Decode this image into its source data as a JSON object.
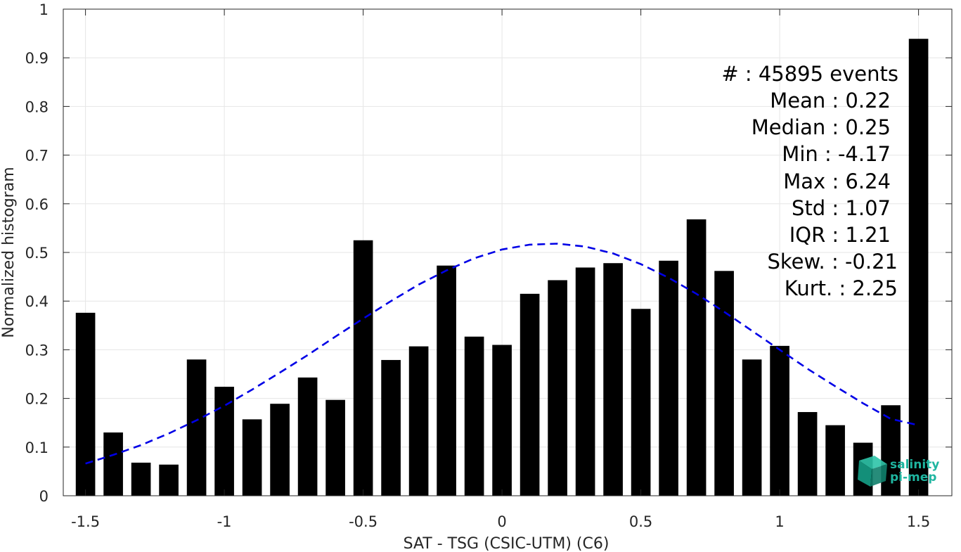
{
  "chart_data": {
    "type": "bar",
    "xlabel": "SAT - TSG (CSIC-UTM) (C6)",
    "ylabel": "Normalized histogram",
    "xlim": [
      -1.58,
      1.62
    ],
    "ylim": [
      0,
      1
    ],
    "x_ticks": [
      -1.5,
      -1,
      -0.5,
      0,
      0.5,
      1,
      1.5
    ],
    "x_tick_labels": [
      "-1.5",
      "-1",
      "-0.5",
      "0",
      "0.5",
      "1",
      "1.5"
    ],
    "y_ticks": [
      0,
      0.1,
      0.2,
      0.3,
      0.4,
      0.5,
      0.6,
      0.7,
      0.8,
      0.9,
      1
    ],
    "y_tick_labels": [
      "0",
      "0.1",
      "0.2",
      "0.3",
      "0.4",
      "0.5",
      "0.6",
      "0.7",
      "0.8",
      "0.9",
      "1"
    ],
    "grid": true,
    "bar_color": "#000000",
    "bins": [
      -1.5,
      -1.4,
      -1.3,
      -1.2,
      -1.1,
      -1.0,
      -0.9,
      -0.8,
      -0.7,
      -0.6,
      -0.5,
      -0.4,
      -0.3,
      -0.2,
      -0.1,
      0.0,
      0.1,
      0.2,
      0.3,
      0.4,
      0.5,
      0.6,
      0.7,
      0.8,
      0.9,
      1.0,
      1.1,
      1.2,
      1.3,
      1.4,
      1.5
    ],
    "values": [
      0.376,
      0.13,
      0.068,
      0.064,
      0.28,
      0.224,
      0.157,
      0.189,
      0.243,
      0.197,
      0.525,
      0.279,
      0.307,
      0.473,
      0.327,
      0.31,
      0.415,
      0.443,
      0.469,
      0.478,
      0.384,
      0.483,
      0.568,
      0.462,
      0.28,
      0.308,
      0.172,
      0.145,
      0.109,
      0.186,
      0.939
    ],
    "fit_curve": {
      "color": "#0000e6",
      "style": "dashed",
      "x": [
        -1.5,
        -1.4,
        -1.3,
        -1.2,
        -1.1,
        -1.0,
        -0.9,
        -0.8,
        -0.7,
        -0.6,
        -0.5,
        -0.4,
        -0.3,
        -0.2,
        -0.1,
        0.0,
        0.1,
        0.2,
        0.3,
        0.4,
        0.5,
        0.6,
        0.7,
        0.8,
        0.9,
        1.0,
        1.1,
        1.2,
        1.3,
        1.4,
        1.5
      ],
      "y": [
        0.066,
        0.084,
        0.104,
        0.128,
        0.155,
        0.185,
        0.218,
        0.253,
        0.289,
        0.327,
        0.364,
        0.4,
        0.434,
        0.463,
        0.488,
        0.506,
        0.516,
        0.518,
        0.512,
        0.498,
        0.476,
        0.448,
        0.415,
        0.378,
        0.339,
        0.3,
        0.261,
        0.225,
        0.19,
        0.158,
        0.145
      ]
    }
  },
  "stats": [
    "#  : 45895 events",
    "Mean : 0.22",
    "Median : 0.25",
    "Min : -4.17",
    "Max : 6.24",
    "Std : 1.07",
    "IQR : 1.21",
    "Skew. : -0.21",
    "Kurt. : 2.25"
  ],
  "logo": {
    "line1": "salinity",
    "line2": "pi-mep",
    "color": "#1fb5a0"
  }
}
